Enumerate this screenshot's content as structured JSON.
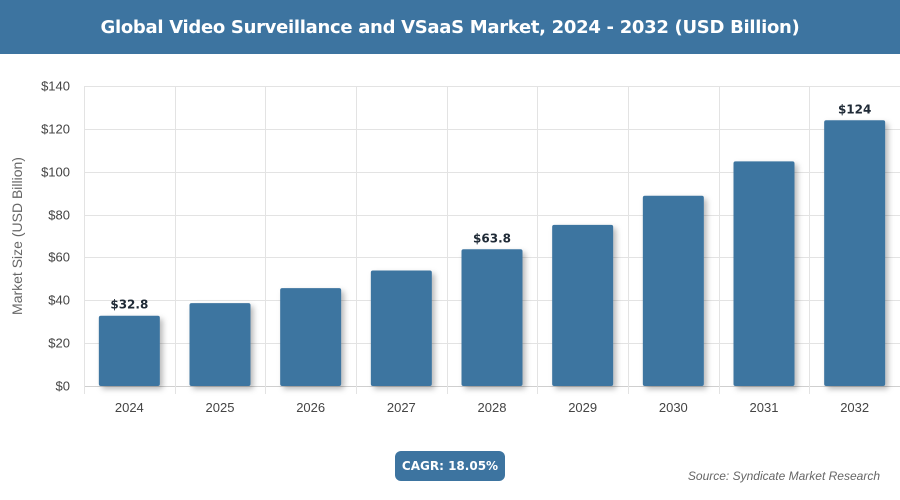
{
  "header": {
    "title": "Global Video Surveillance and VSaaS Market, 2024 - 2032 (USD Billion)"
  },
  "footer": {
    "cagr": "CAGR: 18.05%",
    "source": "Source: Syndicate Market Research"
  },
  "colors": {
    "header_bg": "#3d74a0",
    "bar": "#3d74a0",
    "grid": "#e3e3e3"
  },
  "chart_data": {
    "type": "bar",
    "title": "",
    "xlabel": "",
    "ylabel": "Market Size (USD Billion)",
    "categories": [
      "2024",
      "2025",
      "2026",
      "2027",
      "2028",
      "2029",
      "2030",
      "2031",
      "2032"
    ],
    "values": [
      32.8,
      38.7,
      45.7,
      53.9,
      63.8,
      75.2,
      88.8,
      104.8,
      124
    ],
    "data_labels": [
      {
        "index": 0,
        "text": "$32.8"
      },
      {
        "index": 4,
        "text": "$63.8"
      },
      {
        "index": 8,
        "text": "$124"
      }
    ],
    "ylim": [
      0,
      140
    ],
    "yticks": [
      0,
      20,
      40,
      60,
      80,
      100,
      120,
      140
    ],
    "ytick_labels": [
      "$0",
      "$20",
      "$40",
      "$60",
      "$80",
      "$100",
      "$120",
      "$140"
    ],
    "grid": true,
    "legend": "none"
  }
}
